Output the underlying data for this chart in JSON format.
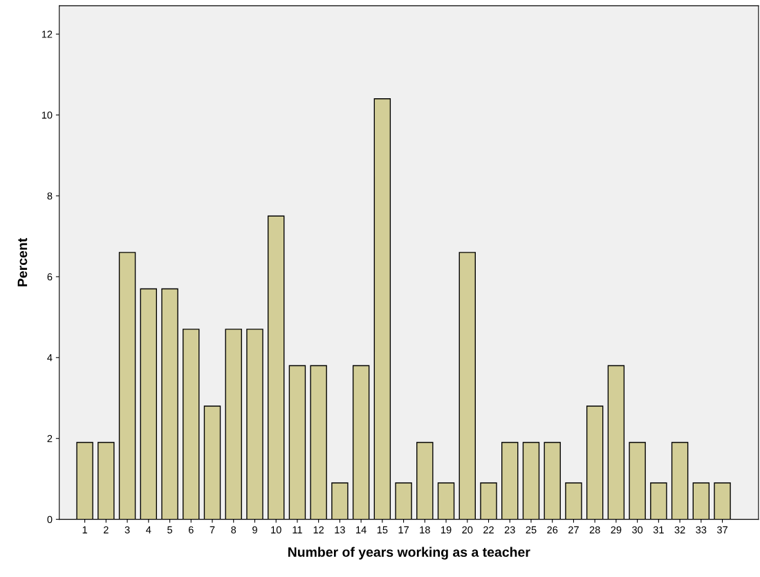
{
  "chart_data": {
    "type": "bar",
    "xlabel": "Number of years working as a teacher",
    "ylabel": "Percent",
    "categories": [
      "1",
      "2",
      "3",
      "4",
      "5",
      "6",
      "7",
      "8",
      "9",
      "10",
      "11",
      "12",
      "13",
      "14",
      "15",
      "17",
      "18",
      "19",
      "20",
      "22",
      "23",
      "25",
      "26",
      "27",
      "28",
      "29",
      "30",
      "31",
      "32",
      "33",
      "37"
    ],
    "values": [
      1.9,
      1.9,
      6.6,
      5.7,
      5.7,
      4.7,
      2.8,
      4.7,
      4.7,
      7.5,
      3.8,
      3.8,
      0.9,
      3.8,
      10.4,
      0.9,
      1.9,
      0.9,
      6.6,
      0.9,
      1.9,
      1.9,
      1.9,
      0.9,
      2.8,
      3.8,
      1.9,
      0.9,
      1.9,
      0.9,
      0.9
    ],
    "color": "#d3ce97",
    "ylim": [
      0,
      12.7
    ],
    "yticks": [
      0,
      2,
      4,
      6,
      8,
      10,
      12
    ],
    "grid": false
  }
}
